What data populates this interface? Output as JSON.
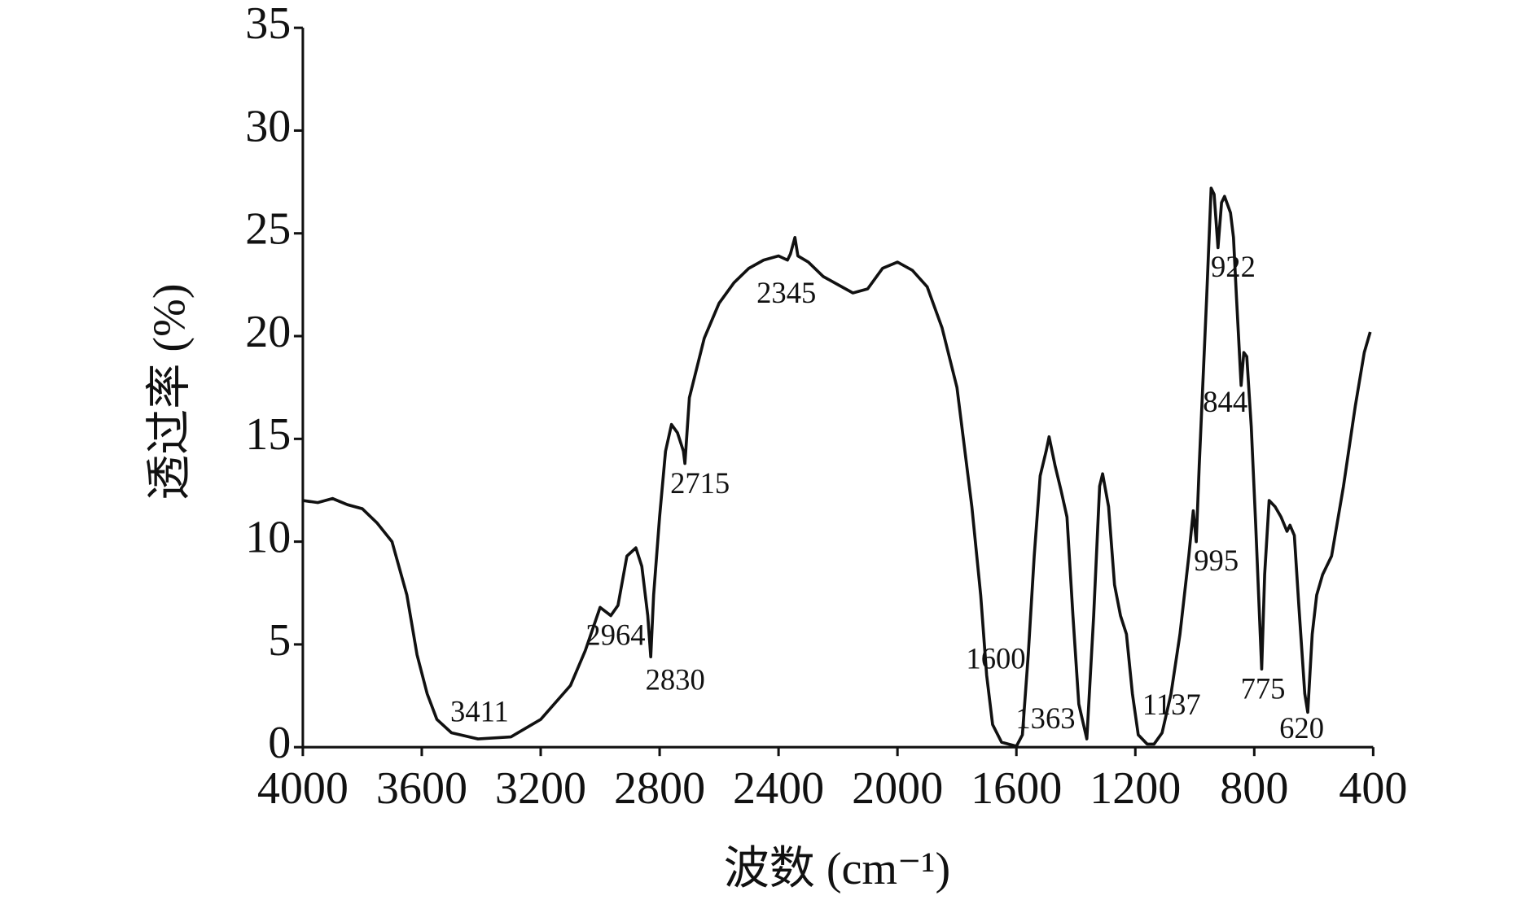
{
  "chart_data": {
    "type": "line",
    "xlabel": "波数 (cm⁻¹)",
    "ylabel": "透过率 (%)",
    "xlim": [
      4000,
      400
    ],
    "xticks": [
      4000,
      3600,
      3200,
      2800,
      2400,
      2000,
      1600,
      1200,
      800,
      400
    ],
    "ylim": [
      0,
      35
    ],
    "yticks": [
      0,
      5,
      10,
      15,
      20,
      25,
      30,
      35
    ],
    "color": "#111111",
    "x": [
      4000,
      3950,
      3900,
      3850,
      3800,
      3750,
      3700,
      3650,
      3616,
      3582,
      3549,
      3500,
      3411,
      3300,
      3200,
      3100,
      3050,
      3000,
      2964,
      2940,
      2910,
      2880,
      2860,
      2840,
      2830,
      2820,
      2800,
      2780,
      2760,
      2740,
      2720,
      2715,
      2700,
      2650,
      2600,
      2550,
      2500,
      2450,
      2400,
      2370,
      2360,
      2345,
      2335,
      2300,
      2250,
      2200,
      2150,
      2100,
      2050,
      2000,
      1950,
      1900,
      1850,
      1800,
      1750,
      1720,
      1700,
      1680,
      1650,
      1600,
      1580,
      1560,
      1540,
      1520,
      1500,
      1490,
      1470,
      1450,
      1430,
      1410,
      1390,
      1363,
      1340,
      1320,
      1310,
      1290,
      1270,
      1250,
      1230,
      1210,
      1190,
      1160,
      1137,
      1110,
      1080,
      1050,
      1020,
      1005,
      995,
      985,
      960,
      945,
      935,
      922,
      910,
      900,
      880,
      870,
      860,
      844,
      835,
      825,
      810,
      795,
      775,
      765,
      750,
      730,
      710,
      690,
      680,
      665,
      650,
      630,
      620,
      605,
      590,
      570,
      540,
      500,
      460,
      430,
      410
    ],
    "values": [
      12.0,
      11.9,
      12.1,
      11.8,
      11.6,
      10.9,
      10.0,
      7.4,
      4.5,
      2.6,
      1.35,
      0.7,
      0.4,
      0.5,
      1.35,
      3.0,
      4.7,
      6.8,
      6.4,
      6.9,
      9.3,
      9.7,
      8.8,
      6.4,
      4.4,
      7.4,
      11.2,
      14.4,
      15.7,
      15.3,
      14.4,
      13.8,
      17.0,
      19.9,
      21.6,
      22.6,
      23.3,
      23.7,
      23.9,
      23.7,
      24.0,
      24.8,
      23.9,
      23.6,
      22.9,
      22.5,
      22.1,
      22.3,
      23.3,
      23.6,
      23.2,
      22.4,
      20.4,
      17.5,
      11.7,
      7.4,
      3.5,
      1.1,
      0.24,
      0.05,
      0.6,
      4.5,
      9.3,
      13.2,
      14.4,
      15.1,
      13.7,
      12.5,
      11.2,
      6.4,
      2.1,
      0.4,
      6.4,
      12.7,
      13.3,
      11.7,
      7.9,
      6.4,
      5.5,
      2.6,
      0.6,
      0.15,
      0.15,
      0.7,
      2.6,
      5.5,
      9.3,
      11.5,
      10.0,
      13.7,
      21.9,
      27.2,
      26.9,
      24.3,
      26.5,
      26.8,
      26.0,
      24.8,
      21.9,
      17.6,
      19.2,
      19.0,
      15.6,
      10.8,
      3.8,
      8.4,
      12.0,
      11.7,
      11.2,
      10.5,
      10.8,
      10.3,
      6.9,
      2.6,
      1.7,
      5.5,
      7.4,
      8.4,
      9.3,
      12.7,
      16.6,
      19.2,
      20.2
    ],
    "annotations": [
      3411,
      2964,
      2830,
      2715,
      2345,
      1600,
      1363,
      1137,
      995,
      922,
      844,
      775,
      620
    ]
  }
}
